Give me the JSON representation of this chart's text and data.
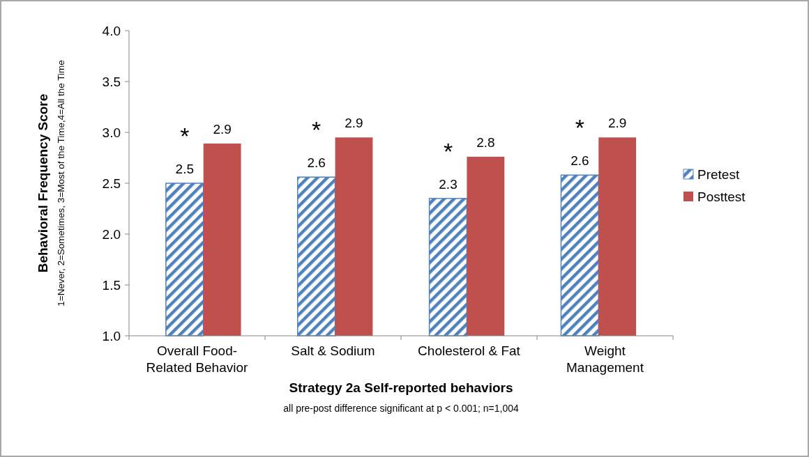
{
  "chart_data": {
    "type": "bar",
    "xlabel": "Strategy 2a Self-reported behaviors",
    "ylabel": "Behavioral Frequency Score",
    "subtitle": "1=Never, 2=Sometimes, 3=Most of the Time,4=All the Time",
    "categories": [
      "Overall Food-Related Behavior",
      "Salt & Sodium",
      "Cholesterol & Fat",
      "Weight Management"
    ],
    "series": [
      {
        "name": "Pretest",
        "color": "#4f81bd",
        "values": [
          2.5,
          2.56,
          2.35,
          2.58
        ],
        "value_labels": [
          "2.5",
          "2.6",
          "2.3",
          "2.6"
        ]
      },
      {
        "name": "Posttest",
        "color": "#c0504d",
        "values": [
          2.89,
          2.95,
          2.76,
          2.95
        ],
        "value_labels": [
          "2.9",
          "2.9",
          "2.8",
          "2.9"
        ]
      }
    ],
    "ylim": [
      1,
      4
    ],
    "yticks": [
      {
        "value": 1,
        "label": "1.0"
      },
      {
        "value": 1.5,
        "label": "1.5"
      },
      {
        "value": 2,
        "label": "2.0"
      },
      {
        "value": 2.5,
        "label": "2.5"
      },
      {
        "value": 3,
        "label": "3.0"
      },
      {
        "value": 3.5,
        "label": "3.5"
      },
      {
        "value": 4,
        "label": "4.0"
      }
    ],
    "grid": false,
    "legend": "right",
    "annotations": [
      "*",
      "*",
      "*",
      "*",
      "all pre-post difference significant at  p < 0.001; n=1,004"
    ]
  }
}
